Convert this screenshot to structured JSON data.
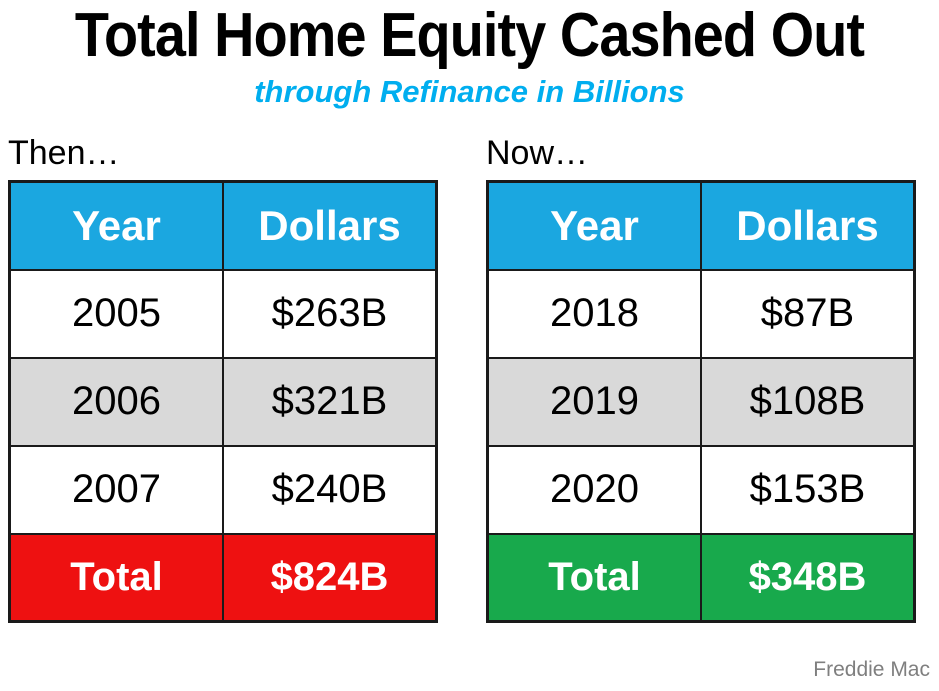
{
  "title": "Total Home Equity Cashed Out",
  "subtitle": "through Refinance in Billions",
  "attribution": "Freddie Mac",
  "colors": {
    "header_bg": "#1BA7E0",
    "subtitle_text": "#00AEEF",
    "alt_row_bg": "#D9D9D9",
    "then_total_bg": "#EE1111",
    "now_total_bg": "#18A94C",
    "border": "#1A1A1A",
    "attribution_text": "#7F7F7F"
  },
  "chart_data": [
    {
      "type": "table",
      "label": "Then…",
      "columns": [
        "Year",
        "Dollars"
      ],
      "rows": [
        [
          "2005",
          "$263B"
        ],
        [
          "2006",
          "$321B"
        ],
        [
          "2007",
          "$240B"
        ]
      ],
      "total": [
        "Total",
        "$824B"
      ]
    },
    {
      "type": "table",
      "label": "Now…",
      "columns": [
        "Year",
        "Dollars"
      ],
      "rows": [
        [
          "2018",
          "$87B"
        ],
        [
          "2019",
          "$108B"
        ],
        [
          "2020",
          "$153B"
        ]
      ],
      "total": [
        "Total",
        "$348B"
      ]
    }
  ]
}
